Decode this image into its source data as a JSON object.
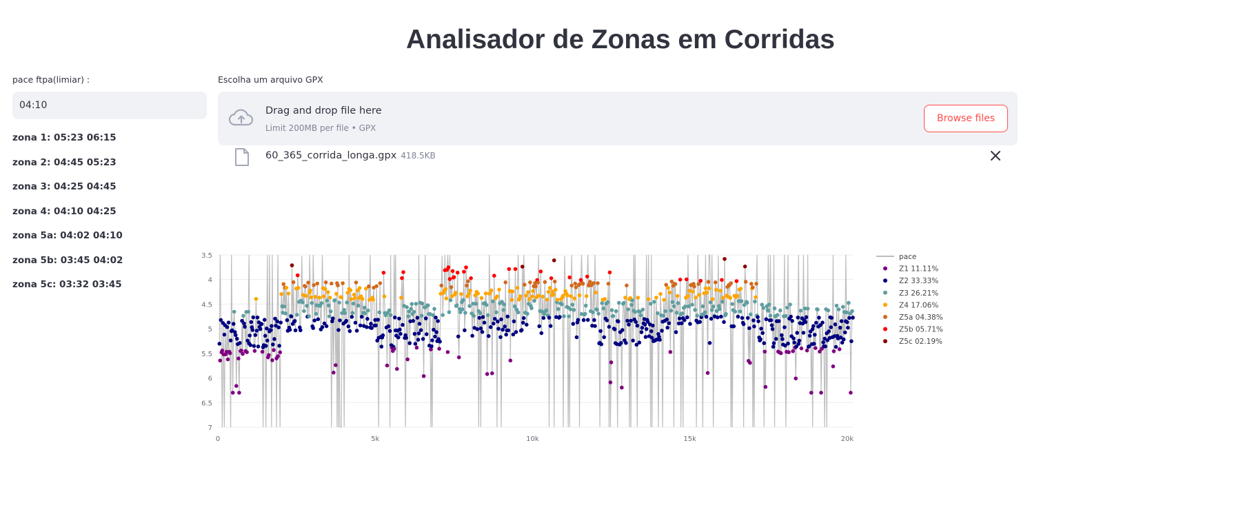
{
  "page": {
    "title": "Analisador de Zonas em Corridas"
  },
  "sidebar": {
    "pace_label": "pace ftpa(limiar) :",
    "pace_value": "04:10",
    "zones": [
      "zona 1: 05:23 06:15",
      "zona 2: 04:45 05:23",
      "zona 3: 04:25 04:45",
      "zona 4: 04:10 04:25",
      "zona 5a: 04:02 04:10",
      "zona 5b: 03:45 04:02",
      "zona 5c: 03:32 03:45"
    ]
  },
  "uploader": {
    "label": "Escolha um arquivo GPX",
    "drop_title": "Drag and drop file here",
    "drop_sub": "Limit 200MB per file • GPX",
    "browse_label": "Browse files",
    "file_name": "60_365_corrida_longa.gpx",
    "file_size": "418.5KB",
    "icons": {
      "upload": "cloud-upload-icon",
      "file": "file-icon",
      "close": "close-icon"
    }
  },
  "colors": {
    "accent": "#ff4b4b",
    "input_bg": "#f0f2f6"
  },
  "chart_data": {
    "type": "scatter",
    "x_ticks": [
      "0",
      "5k",
      "10k",
      "15k",
      "20k"
    ],
    "x_tick_values": [
      0,
      5000,
      10000,
      15000,
      20000
    ],
    "xlim": [
      0,
      20200
    ],
    "y_ticks": [
      "3.5",
      "4",
      "4.5",
      "5",
      "5.5",
      "6",
      "6.5",
      "7"
    ],
    "y_tick_values": [
      3.5,
      4,
      4.5,
      5,
      5.5,
      6,
      6.5,
      7
    ],
    "ylim": [
      7,
      3.5
    ],
    "y_reversed": true,
    "legend_position": "right",
    "series": [
      {
        "name": "pace",
        "kind": "line",
        "color": "#bdbdbd"
      },
      {
        "name": "Z1 11.11%",
        "kind": "points",
        "color": "#800080",
        "range": [
          5.383,
          6.25
        ],
        "share": 11.11
      },
      {
        "name": "Z2 33.33%",
        "kind": "points",
        "color": "#000080",
        "range": [
          4.75,
          5.383
        ],
        "share": 33.33
      },
      {
        "name": "Z3 26.21%",
        "kind": "points",
        "color": "#5f9ea0",
        "range": [
          4.417,
          4.75
        ],
        "share": 26.21
      },
      {
        "name": "Z4 17.06%",
        "kind": "points",
        "color": "#ffa500",
        "range": [
          4.167,
          4.417
        ],
        "share": 17.06
      },
      {
        "name": "Z5a 04.38%",
        "kind": "points",
        "color": "#d2691e",
        "range": [
          4.033,
          4.167
        ],
        "share": 4.38
      },
      {
        "name": "Z5b 05.71%",
        "kind": "points",
        "color": "#ff0000",
        "range": [
          3.75,
          4.033
        ],
        "share": 5.71
      },
      {
        "name": "Z5c 02.19%",
        "kind": "points",
        "color": "#8b0000",
        "range": [
          3.533,
          3.75
        ],
        "share": 2.19
      }
    ]
  }
}
